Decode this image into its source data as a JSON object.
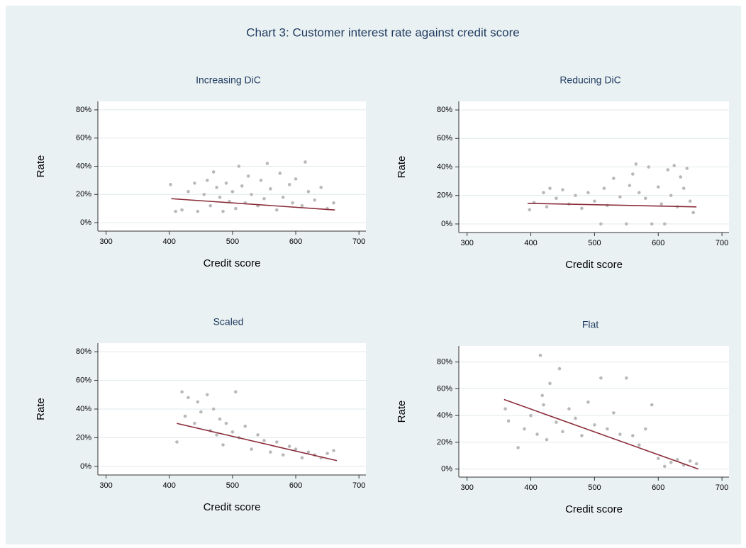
{
  "title": "Chart 3: Customer interest rate against credit score",
  "chart_data": [
    {
      "type": "scatter",
      "title": "Increasing DiC",
      "xlabel": "Credit score",
      "ylabel": "Rate",
      "xlim": [
        287,
        711
      ],
      "ylim": [
        -6,
        86
      ],
      "xticks": [
        300,
        400,
        500,
        600,
        700
      ],
      "yticks": [
        {
          "value": 0,
          "label": "0%"
        },
        {
          "value": 20,
          "label": "20%"
        },
        {
          "value": 40,
          "label": "40%"
        },
        {
          "value": 60,
          "label": "60%"
        },
        {
          "value": 80,
          "label": "80%"
        }
      ],
      "grid": true,
      "points": {
        "color": "#b9b9b9",
        "x": [
          402,
          410,
          420,
          430,
          440,
          445,
          455,
          460,
          465,
          470,
          475,
          480,
          485,
          490,
          495,
          500,
          505,
          510,
          515,
          520,
          525,
          530,
          540,
          545,
          550,
          555,
          560,
          570,
          575,
          580,
          590,
          595,
          600,
          610,
          615,
          620,
          630,
          640,
          650,
          660
        ],
        "y": [
          27,
          8,
          9,
          22,
          28,
          8,
          20,
          30,
          12,
          36,
          25,
          18,
          8,
          28,
          15,
          22,
          10,
          40,
          26,
          14,
          33,
          20,
          12,
          30,
          17,
          42,
          24,
          9,
          35,
          18,
          27,
          14,
          31,
          12,
          43,
          22,
          16,
          25,
          10,
          14
        ]
      },
      "fit": {
        "color": "#8b2c3a",
        "x": [
          403,
          662
        ],
        "y": [
          17,
          9
        ]
      }
    },
    {
      "type": "scatter",
      "title": "Reducing DiC",
      "xlabel": "Credit score",
      "ylabel": "Rate",
      "xlim": [
        287,
        711
      ],
      "ylim": [
        -6,
        86
      ],
      "xticks": [
        300,
        400,
        500,
        600,
        700
      ],
      "yticks": [
        {
          "value": 0,
          "label": "0%"
        },
        {
          "value": 20,
          "label": "20%"
        },
        {
          "value": 40,
          "label": "40%"
        },
        {
          "value": 60,
          "label": "60%"
        },
        {
          "value": 80,
          "label": "80%"
        }
      ],
      "grid": true,
      "points": {
        "color": "#b9b9b9",
        "x": [
          398,
          405,
          420,
          425,
          430,
          440,
          450,
          460,
          470,
          480,
          490,
          500,
          510,
          515,
          520,
          530,
          540,
          550,
          555,
          560,
          565,
          570,
          580,
          585,
          590,
          600,
          605,
          610,
          615,
          620,
          625,
          630,
          635,
          640,
          645,
          650,
          655
        ],
        "y": [
          10,
          15,
          22,
          12,
          25,
          18,
          24,
          14,
          20,
          11,
          22,
          16,
          0,
          25,
          13,
          32,
          19,
          0,
          27,
          35,
          42,
          22,
          18,
          40,
          0,
          26,
          14,
          0,
          38,
          20,
          41,
          12,
          33,
          25,
          39,
          16,
          8
        ]
      },
      "fit": {
        "color": "#8b2c3a",
        "x": [
          395,
          660
        ],
        "y": [
          14.5,
          12
        ]
      }
    },
    {
      "type": "scatter",
      "title": "Scaled",
      "xlabel": "Credit score",
      "ylabel": "Rate",
      "xlim": [
        287,
        711
      ],
      "ylim": [
        -6,
        86
      ],
      "xticks": [
        300,
        400,
        500,
        600,
        700
      ],
      "yticks": [
        {
          "value": 0,
          "label": "0%"
        },
        {
          "value": 20,
          "label": "20%"
        },
        {
          "value": 40,
          "label": "40%"
        },
        {
          "value": 60,
          "label": "60%"
        },
        {
          "value": 80,
          "label": "80%"
        }
      ],
      "grid": true,
      "points": {
        "color": "#b9b9b9",
        "x": [
          412,
          420,
          425,
          430,
          440,
          445,
          450,
          460,
          465,
          470,
          475,
          480,
          485,
          490,
          500,
          505,
          510,
          520,
          530,
          540,
          550,
          560,
          570,
          580,
          590,
          600,
          610,
          620,
          630,
          640,
          650,
          660
        ],
        "y": [
          17,
          52,
          35,
          48,
          30,
          45,
          38,
          50,
          25,
          40,
          22,
          33,
          15,
          30,
          24,
          52,
          20,
          28,
          12,
          22,
          18,
          10,
          17,
          8,
          14,
          12,
          6,
          10,
          8,
          6,
          9,
          11
        ]
      },
      "fit": {
        "color": "#8b2c3a",
        "x": [
          412,
          665
        ],
        "y": [
          30,
          4
        ]
      }
    },
    {
      "type": "scatter",
      "title": "Flat",
      "xlabel": "Credit score",
      "ylabel": "Rate",
      "xlim": [
        287,
        711
      ],
      "ylim": [
        -6,
        92
      ],
      "xticks": [
        300,
        400,
        500,
        600,
        700
      ],
      "yticks": [
        {
          "value": 0,
          "label": "0%"
        },
        {
          "value": 20,
          "label": "20%"
        },
        {
          "value": 40,
          "label": "40%"
        },
        {
          "value": 60,
          "label": "60%"
        },
        {
          "value": 80,
          "label": "80%"
        }
      ],
      "grid": true,
      "points": {
        "color": "#b9b9b9",
        "x": [
          360,
          365,
          380,
          390,
          400,
          410,
          415,
          418,
          420,
          425,
          430,
          440,
          445,
          450,
          460,
          470,
          480,
          490,
          500,
          510,
          520,
          530,
          540,
          550,
          560,
          570,
          580,
          590,
          600,
          610,
          620,
          630,
          640,
          650,
          660
        ],
        "y": [
          45,
          36,
          16,
          30,
          40,
          26,
          85,
          55,
          48,
          22,
          64,
          35,
          75,
          28,
          45,
          38,
          25,
          50,
          33,
          68,
          30,
          42,
          26,
          68,
          25,
          18,
          30,
          48,
          8,
          2,
          5,
          7,
          3,
          6,
          4
        ]
      },
      "fit": {
        "color": "#8b2c3a",
        "x": [
          358,
          663
        ],
        "y": [
          52,
          0
        ]
      }
    }
  ]
}
